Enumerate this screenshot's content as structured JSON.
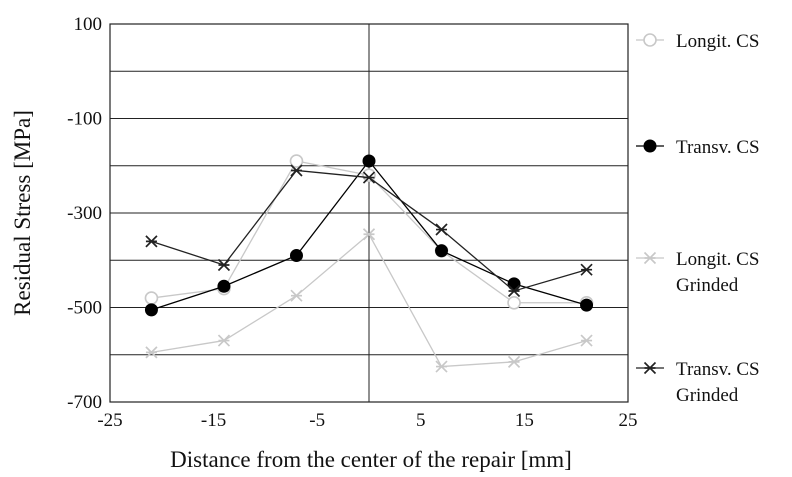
{
  "chart_data": {
    "type": "line",
    "xlabel": "Distance from the center of the repair [mm]",
    "ylabel": "Residual Stress [MPa]",
    "xlim": [
      -25,
      25
    ],
    "ylim": [
      -700,
      100
    ],
    "xticks": [
      -25,
      -15,
      -5,
      5,
      15,
      25
    ],
    "yticks": [
      100,
      -100,
      -300,
      -500,
      -700
    ],
    "x_tick_labels": [
      "-25",
      "-15",
      "-5",
      "5",
      "15",
      "25"
    ],
    "y_tick_labels": [
      "100",
      "-100",
      "-300",
      "-500",
      "-700"
    ],
    "grid": "horizontal lines every 100 MPa, vertical line at x = 0",
    "legend_position": "right",
    "series": [
      {
        "name": "Longit. CS",
        "color": "#c8c8c8",
        "marker": "open-circle",
        "x": [
          -21,
          -14,
          -7,
          0,
          7,
          14,
          21
        ],
        "y": [
          -480,
          -460,
          -190,
          -220,
          -380,
          -490,
          -490
        ]
      },
      {
        "name": "Transv. CS",
        "color": "#000000",
        "marker": "filled-circle",
        "x": [
          -21,
          -14,
          -7,
          0,
          7,
          14,
          21
        ],
        "y": [
          -505,
          -455,
          -390,
          -190,
          -380,
          -450,
          -495
        ]
      },
      {
        "name": "Longit. CS\nGrinded",
        "color": "#c8c8c8",
        "marker": "star",
        "x": [
          -21,
          -14,
          -7,
          0,
          7,
          14,
          21
        ],
        "y": [
          -595,
          -570,
          -475,
          -345,
          -625,
          -615,
          -570
        ]
      },
      {
        "name": "Transv. CS\nGrinded",
        "color": "#222222",
        "marker": "star",
        "x": [
          -21,
          -14,
          -7,
          0,
          7,
          14,
          21
        ],
        "y": [
          -360,
          -410,
          -210,
          -225,
          -335,
          -465,
          -420
        ]
      }
    ]
  }
}
